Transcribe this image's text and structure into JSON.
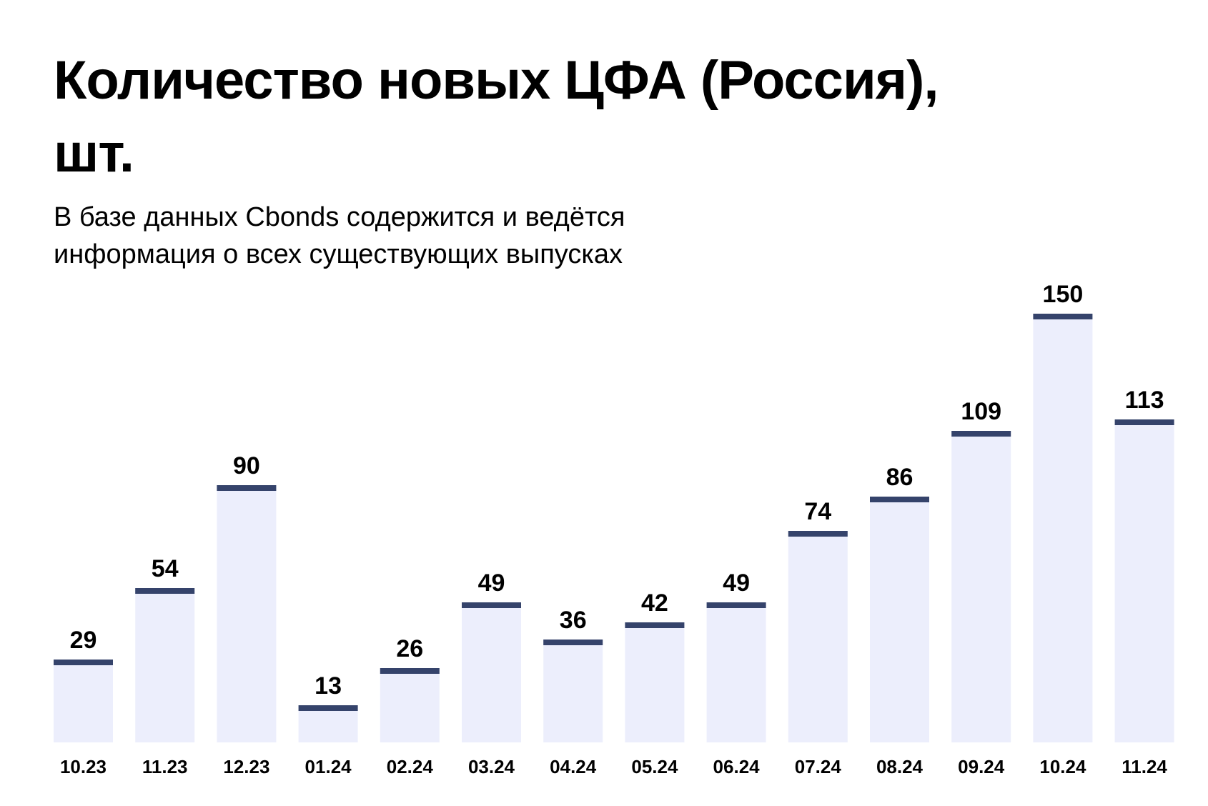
{
  "header": {
    "title_line1": "Количество новых ЦФА (Россия),",
    "title_line2": "шт.",
    "subtitle_line1": "В базе данных Cbonds содержится и ведётся",
    "subtitle_line2": "информация о всех существующих выпусках"
  },
  "colors": {
    "bar_fill": "#eceefc",
    "bar_cap": "#35436b",
    "text": "#000000",
    "background": "#ffffff"
  },
  "chart_data": {
    "type": "bar",
    "categories": [
      "10.23",
      "11.23",
      "12.23",
      "01.24",
      "02.24",
      "03.24",
      "04.24",
      "05.24",
      "06.24",
      "07.24",
      "08.24",
      "09.24",
      "10.24",
      "11.24"
    ],
    "values": [
      29,
      54,
      90,
      13,
      26,
      49,
      36,
      42,
      49,
      74,
      86,
      109,
      150,
      113
    ],
    "title": "Количество новых ЦФА (Россия), шт.",
    "subtitle": "В базе данных Cbonds содержится и ведётся информация о всех существующих выпусках",
    "ylim": [
      0,
      150
    ],
    "grid": false,
    "legend": "none",
    "data_labels": true
  }
}
